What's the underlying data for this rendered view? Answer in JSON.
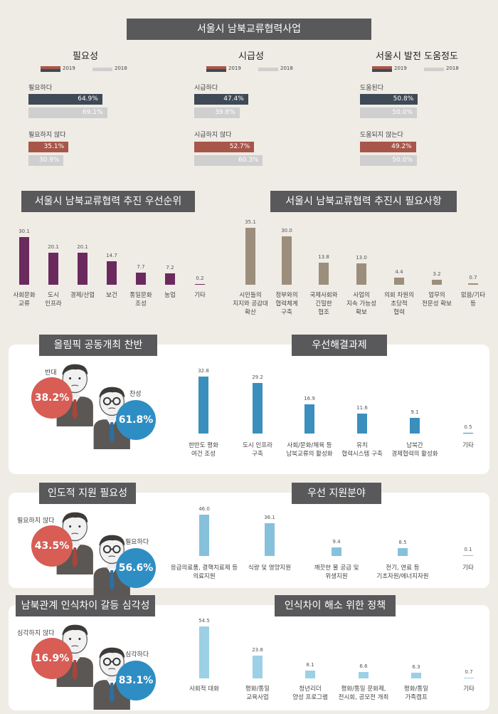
{
  "main_title": "서울시 남북교류협력사업",
  "top": {
    "legend": {
      "y2019": "2019",
      "y2018": "2018"
    },
    "colors": {
      "dark": "#3e4a55",
      "red": "#a8564a",
      "light": "#cfcfcf"
    },
    "groups": [
      {
        "title": "필요성",
        "pos_label": "필요하다",
        "pos2019": "64.9%",
        "pos2018": "69.1%",
        "neg_label": "필요하지 않다",
        "neg2019": "35.1%",
        "neg2018": "30.9%",
        "p19": 64.9,
        "p18": 69.1,
        "n19": 35.1,
        "n18": 30.9
      },
      {
        "title": "시급성",
        "pos_label": "시급하다",
        "pos2019": "47.4%",
        "pos2018": "39.8%",
        "neg_label": "시급하지 않다",
        "neg2019": "52.7%",
        "neg2018": "60.3%",
        "p19": 47.4,
        "p18": 39.8,
        "n19": 52.7,
        "n18": 60.3
      },
      {
        "title": "서울시 발전 도움정도",
        "pos_label": "도움된다",
        "pos2019": "50.8%",
        "pos2018": "50.0%",
        "neg_label": "도움되지 않는다",
        "neg2019": "49.2%",
        "neg2018": "50.0%",
        "p19": 50.8,
        "p18": 50.0,
        "n19": 49.2,
        "n18": 50.0
      }
    ]
  },
  "priority": {
    "title": "서울시 남북교류협력 추진 우선순위",
    "color": "#6b2a5e",
    "values_text": [
      "30.1",
      "20.1",
      "20.1",
      "14.7",
      "7.7",
      "7.2",
      "0.2"
    ],
    "labels": [
      "사회문화\n교류",
      "도시\n인프라",
      "경제/산업",
      "보건",
      "통일문화\n조성",
      "농업",
      "기타"
    ]
  },
  "needs": {
    "title": "서울시 남북교류협력 추진시 필요사항",
    "color": "#9c8e7c",
    "values_text": [
      "35.1",
      "30.0",
      "13.8",
      "13.0",
      "4.4",
      "3.2",
      "0.7"
    ],
    "labels": [
      "시민들의\n지지와 공감대\n확산",
      "정부와의\n협력체계\n구축",
      "국제사회와\n긴밀한\n협조",
      "사업의\n지속 가능성\n확보",
      "의회 차원의\n초당적\n협력",
      "업무의\n전문성 확보",
      "없음/기타\n등"
    ]
  },
  "olympic": {
    "left_title": "올림픽 공동개최 찬반",
    "oppose_label": "반대",
    "oppose": "38.2%",
    "support_label": "찬성",
    "support": "61.8%",
    "right_title": "우선해결과제",
    "color": "#3a8fbd",
    "values_text": [
      "32.8",
      "29.2",
      "16.9",
      "11.6",
      "9.1",
      "0.5"
    ],
    "labels": [
      "한반도 평화\n여건 조성",
      "도시 인프라\n구축",
      "사회/문화/체육 등\n남북교류의 활성화",
      "유치\n협력시스템 구축",
      "남북간\n경제협력의 활성화",
      "기타"
    ]
  },
  "aid": {
    "left_title": "인도적 지원 필요성",
    "neg_label": "필요하지 않다",
    "neg": "43.5%",
    "pos_label": "필요하다",
    "pos": "56.6%",
    "right_title": "우선 지원분야",
    "color": "#86c1dc",
    "values_text": [
      "46.0",
      "36.1",
      "9.4",
      "8.5",
      "0.1"
    ],
    "labels": [
      "응급의료품, 결핵치료제 등\n의료지원",
      "식량 및 영양지원",
      "깨끗한 물 공급 및\n위생지원",
      "전기, 연료 등\n기초자원/에너지자원",
      "기타"
    ]
  },
  "gap": {
    "left_title": "남북관계 인식차이 갈등 심각성",
    "neg_label": "심각하지 않다",
    "neg": "16.9%",
    "pos_label": "심각하다",
    "pos": "83.1%",
    "right_title": "인식차이 해소 위한 정책",
    "color": "#9cd0e6",
    "values_text": [
      "54.5",
      "23.8",
      "8.1",
      "6.6",
      "6.3",
      "0.7"
    ],
    "labels": [
      "사회적 대화",
      "평화/통일\n교육사업",
      "청년리더\n양성 프로그램",
      "평화/통일 문화제,\n전시회, 공모전 개최",
      "평화/통일\n가족캠프",
      "기타"
    ]
  },
  "chart_data": [
    {
      "type": "bar",
      "title": "필요성",
      "categories": [
        "필요하다",
        "필요하지 않다"
      ],
      "series": [
        {
          "name": "2019",
          "values": [
            64.9,
            35.1
          ]
        },
        {
          "name": "2018",
          "values": [
            69.1,
            30.9
          ]
        }
      ]
    },
    {
      "type": "bar",
      "title": "시급성",
      "categories": [
        "시급하다",
        "시급하지 않다"
      ],
      "series": [
        {
          "name": "2019",
          "values": [
            47.4,
            52.7
          ]
        },
        {
          "name": "2018",
          "values": [
            39.8,
            60.3
          ]
        }
      ]
    },
    {
      "type": "bar",
      "title": "서울시 발전 도움정도",
      "categories": [
        "도움된다",
        "도움되지 않는다"
      ],
      "series": [
        {
          "name": "2019",
          "values": [
            50.8,
            49.2
          ]
        },
        {
          "name": "2018",
          "values": [
            50.0,
            50.0
          ]
        }
      ]
    },
    {
      "type": "bar",
      "title": "서울시 남북교류협력 추진 우선순위",
      "categories": [
        "사회문화 교류",
        "도시 인프라",
        "경제/산업",
        "보건",
        "통일문화 조성",
        "농업",
        "기타"
      ],
      "values": [
        30.1,
        20.1,
        20.1,
        14.7,
        7.7,
        7.2,
        0.2
      ]
    },
    {
      "type": "bar",
      "title": "서울시 남북교류협력 추진시 필요사항",
      "categories": [
        "시민들의 지지와 공감대 확산",
        "정부와의 협력체계 구축",
        "국제사회와 긴밀한 협조",
        "사업의 지속 가능성 확보",
        "의회 차원의 초당적 협력",
        "업무의 전문성 확보",
        "없음/기타 등"
      ],
      "values": [
        35.1,
        30.0,
        13.8,
        13.0,
        4.4,
        3.2,
        0.7
      ]
    },
    {
      "type": "pie",
      "title": "올림픽 공동개최 찬반",
      "categories": [
        "반대",
        "찬성"
      ],
      "values": [
        38.2,
        61.8
      ]
    },
    {
      "type": "bar",
      "title": "우선해결과제",
      "categories": [
        "한반도 평화 여건 조성",
        "도시 인프라 구축",
        "사회/문화/체육 등 남북교류의 활성화",
        "유치 협력시스템 구축",
        "남북간 경제협력의 활성화",
        "기타"
      ],
      "values": [
        32.8,
        29.2,
        16.9,
        11.6,
        9.1,
        0.5
      ]
    },
    {
      "type": "pie",
      "title": "인도적 지원 필요성",
      "categories": [
        "필요하지 않다",
        "필요하다"
      ],
      "values": [
        43.5,
        56.6
      ]
    },
    {
      "type": "bar",
      "title": "우선 지원분야",
      "categories": [
        "응급의료품, 결핵치료제 등 의료지원",
        "식량 및 영양지원",
        "깨끗한 물 공급 및 위생지원",
        "전기, 연료 등 기초자원/에너지자원",
        "기타"
      ],
      "values": [
        46.0,
        36.1,
        9.4,
        8.5,
        0.1
      ]
    },
    {
      "type": "pie",
      "title": "남북관계 인식차이 갈등 심각성",
      "categories": [
        "심각하지 않다",
        "심각하다"
      ],
      "values": [
        16.9,
        83.1
      ]
    },
    {
      "type": "bar",
      "title": "인식차이 해소 위한 정책",
      "categories": [
        "사회적 대화",
        "평화/통일 교육사업",
        "청년리더 양성 프로그램",
        "평화/통일 문화제, 전시회, 공모전 개최",
        "평화/통일 가족캠프",
        "기타"
      ],
      "values": [
        54.5,
        23.8,
        8.1,
        6.6,
        6.3,
        0.7
      ]
    }
  ]
}
